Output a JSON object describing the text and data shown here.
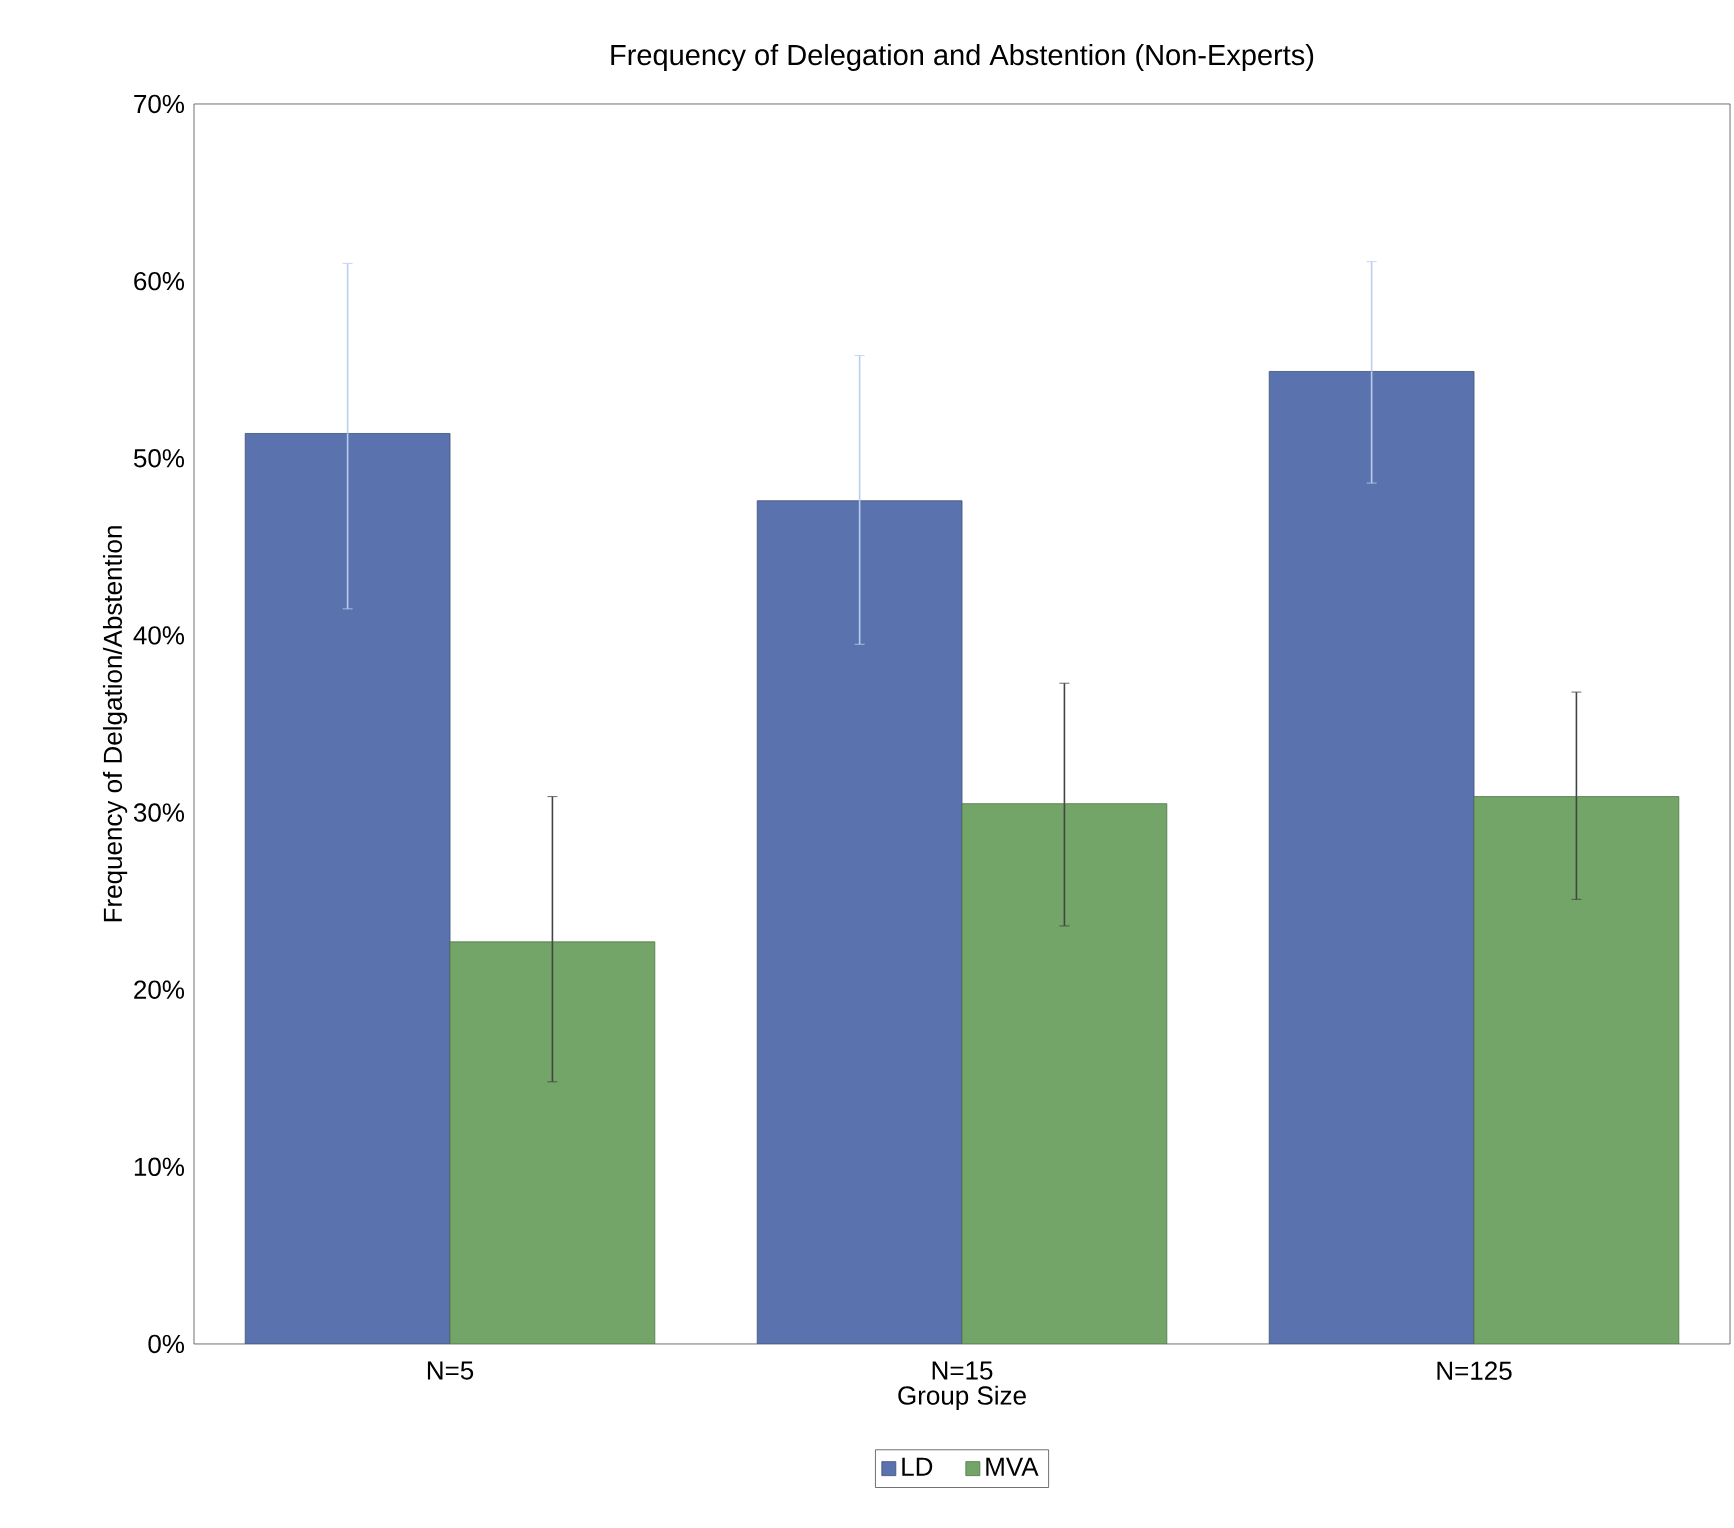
{
  "chart_data": {
    "type": "bar",
    "title": "Frequency of Delegation and Abstention (Non-Experts)",
    "xlabel": "Group Size",
    "ylabel": "Frequency of Delgation/Abstention",
    "categories": [
      "N=5",
      "N=15",
      "N=125"
    ],
    "series": [
      {
        "name": "LD",
        "color": "#5a72ad",
        "values": [
          51.4,
          47.6,
          54.9
        ],
        "errors": [
          [
            41.5,
            61.0
          ],
          [
            39.5,
            55.8
          ],
          [
            48.6,
            61.1
          ]
        ]
      },
      {
        "name": "MVA",
        "color": "#72a567",
        "values": [
          22.7,
          30.5,
          30.9
        ],
        "errors": [
          [
            14.8,
            30.9
          ],
          [
            23.6,
            37.3
          ],
          [
            25.1,
            36.8
          ]
        ]
      }
    ],
    "ylim": [
      0,
      70
    ],
    "yticks": [
      {
        "value": 0,
        "label": "0%"
      },
      {
        "value": 10,
        "label": "10%"
      },
      {
        "value": 20,
        "label": "20%"
      },
      {
        "value": 30,
        "label": "30%"
      },
      {
        "value": 40,
        "label": "40%"
      },
      {
        "value": 50,
        "label": "50%"
      },
      {
        "value": 60,
        "label": "60%"
      },
      {
        "value": 70,
        "label": "70%"
      }
    ],
    "grid": false,
    "legend": "bottom"
  }
}
